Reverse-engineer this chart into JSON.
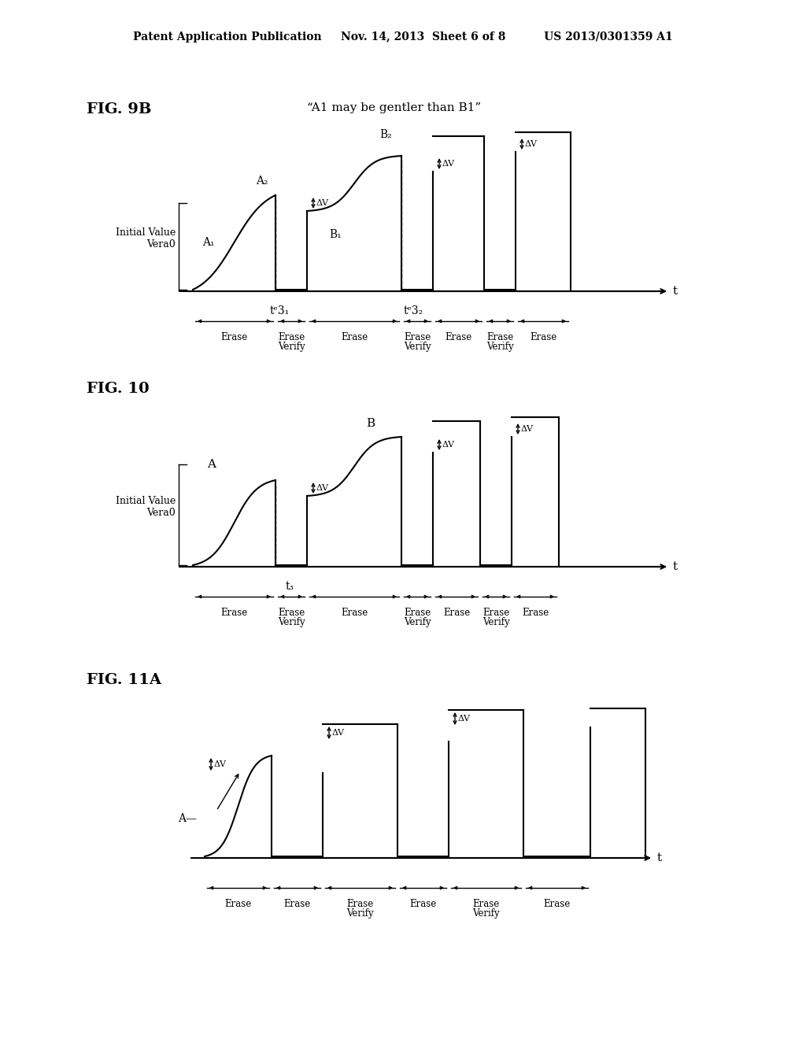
{
  "bg_color": "#ffffff",
  "header": "Patent Application Publication     Nov. 14, 2013  Sheet 6 of 8          US 2013/0301359 A1",
  "fig9b_label": "FIG. 9B",
  "fig9b_subtitle": "“A1 may be gentler than B1”",
  "fig10_label": "FIG. 10",
  "fig11a_label": "FIG. 11A",
  "lw": 1.5,
  "lw_thin": 1.0
}
